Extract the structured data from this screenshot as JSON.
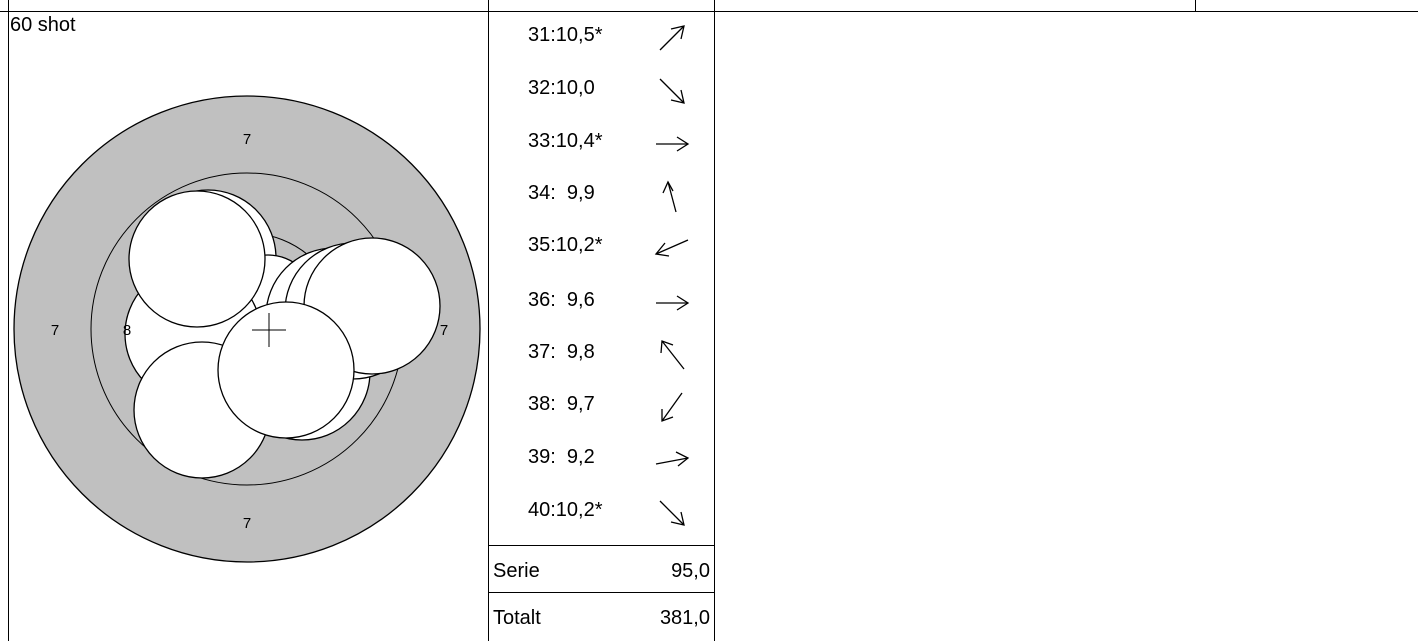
{
  "target_panel": {
    "title": "60 shot",
    "ring_labels": {
      "top": "7",
      "bottom": "7",
      "left": "7",
      "right": "7",
      "inner_left": "8"
    },
    "colors": {
      "ring_fill": "#c0c0c0",
      "shot_fill": "#ffffff",
      "outline": "#000000"
    }
  },
  "shots": [
    {
      "label": "31:10,5*",
      "direction": "up-right"
    },
    {
      "label": "32:10,0",
      "direction": "down-right"
    },
    {
      "label": "33:10,4*",
      "direction": "right"
    },
    {
      "label": "34:  9,9",
      "direction": "up"
    },
    {
      "label": "35:10,2*",
      "direction": "left"
    },
    {
      "label": "36:  9,6",
      "direction": "right"
    },
    {
      "label": "37:  9,8",
      "direction": "up-left"
    },
    {
      "label": "38:  9,7",
      "direction": "down-left"
    },
    {
      "label": "39:  9,2",
      "direction": "right"
    },
    {
      "label": "40:10,2*",
      "direction": "down-right"
    }
  ],
  "summary": {
    "serie_label": "Serie",
    "serie_value": "95,0",
    "totalt_label": "Totalt",
    "totalt_value": "381,0"
  }
}
